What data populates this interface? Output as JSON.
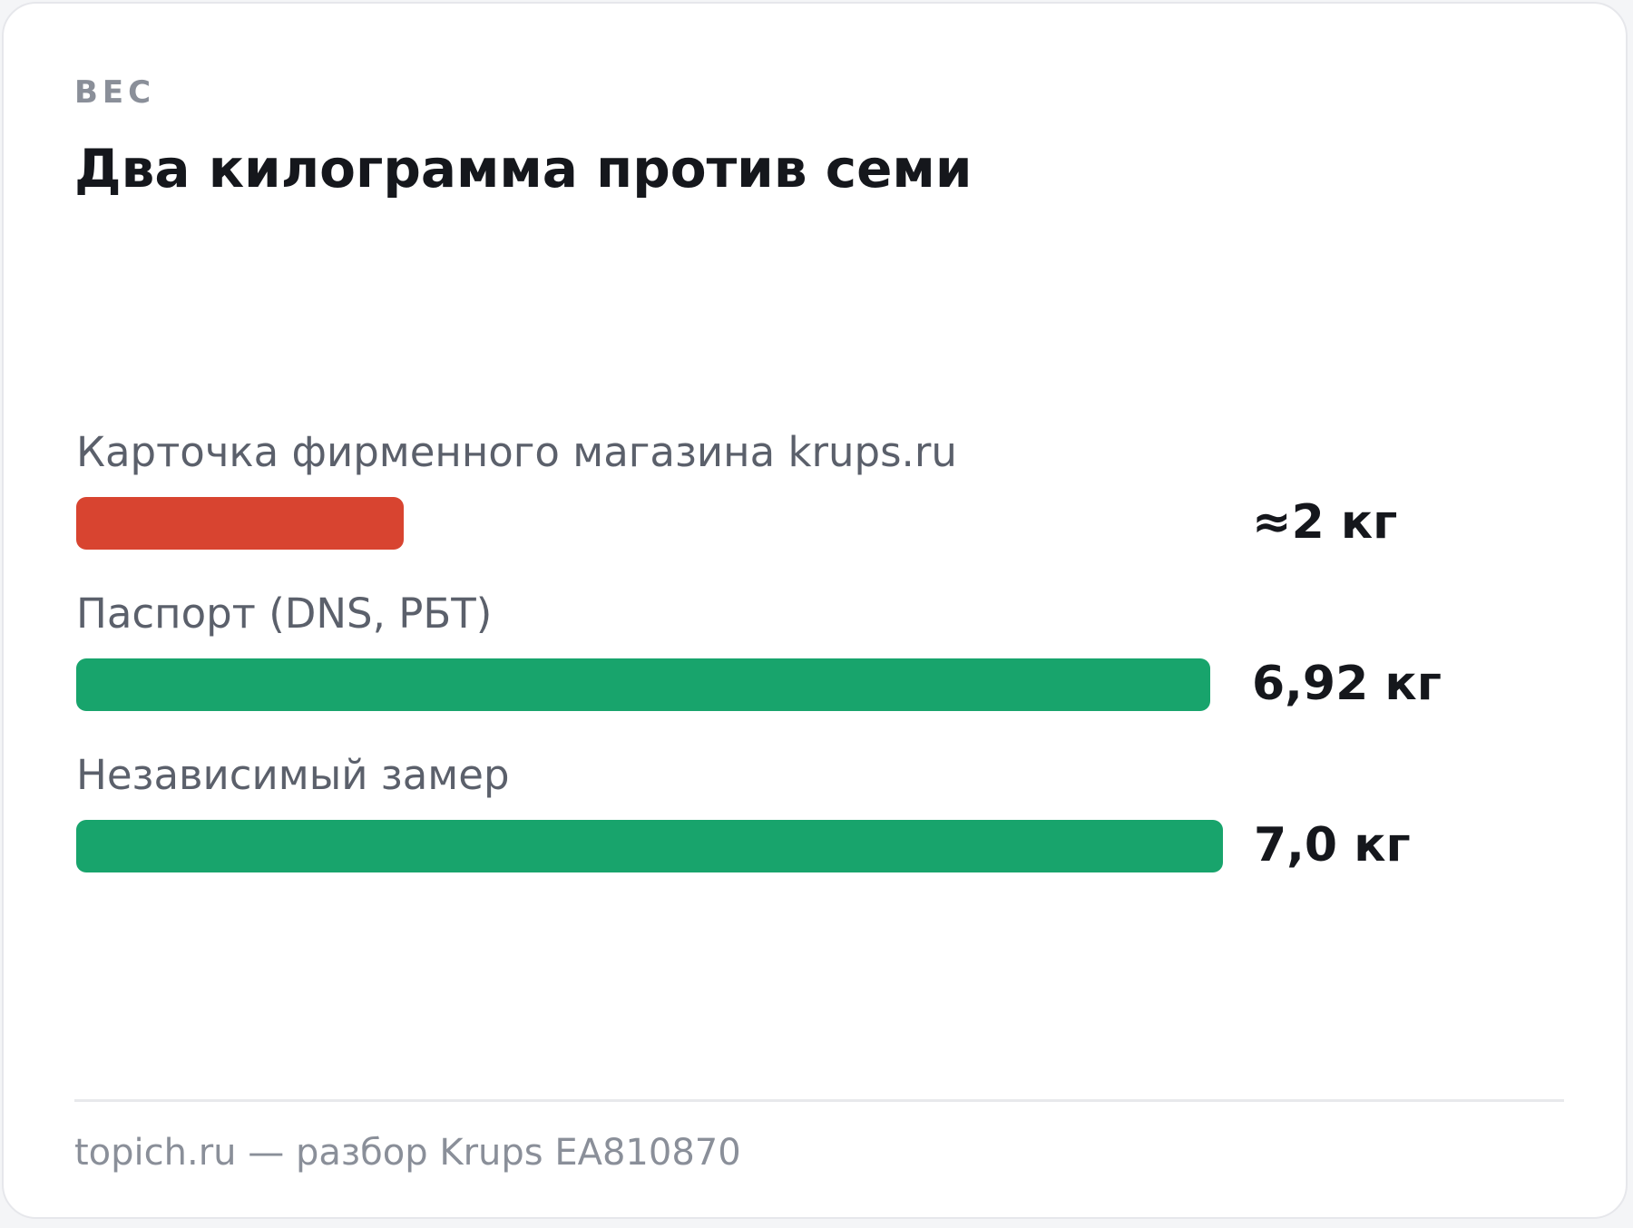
{
  "eyebrow": "ВЕС",
  "title": "Два килограмма против семи",
  "footer": "topich.ru — разбор Krups EA810870",
  "colors": {
    "bad": "#d84430",
    "good": "#18a46c"
  },
  "chart_data": {
    "type": "bar",
    "orientation": "horizontal",
    "title": "Два килограмма против семи",
    "unit": "кг",
    "xlim": [
      0,
      7.0
    ],
    "grid": false,
    "legend": "none",
    "categories": [
      "Карточка фирменного магазина krups.ru",
      "Паспорт (DNS, РБТ)",
      "Независимый замер"
    ],
    "values": [
      2,
      6.92,
      7.0
    ],
    "value_labels": [
      "≈2 кг",
      "6,92 кг",
      "7,0 кг"
    ],
    "bar_colors": [
      "#d84430",
      "#18a46c",
      "#18a46c"
    ]
  }
}
